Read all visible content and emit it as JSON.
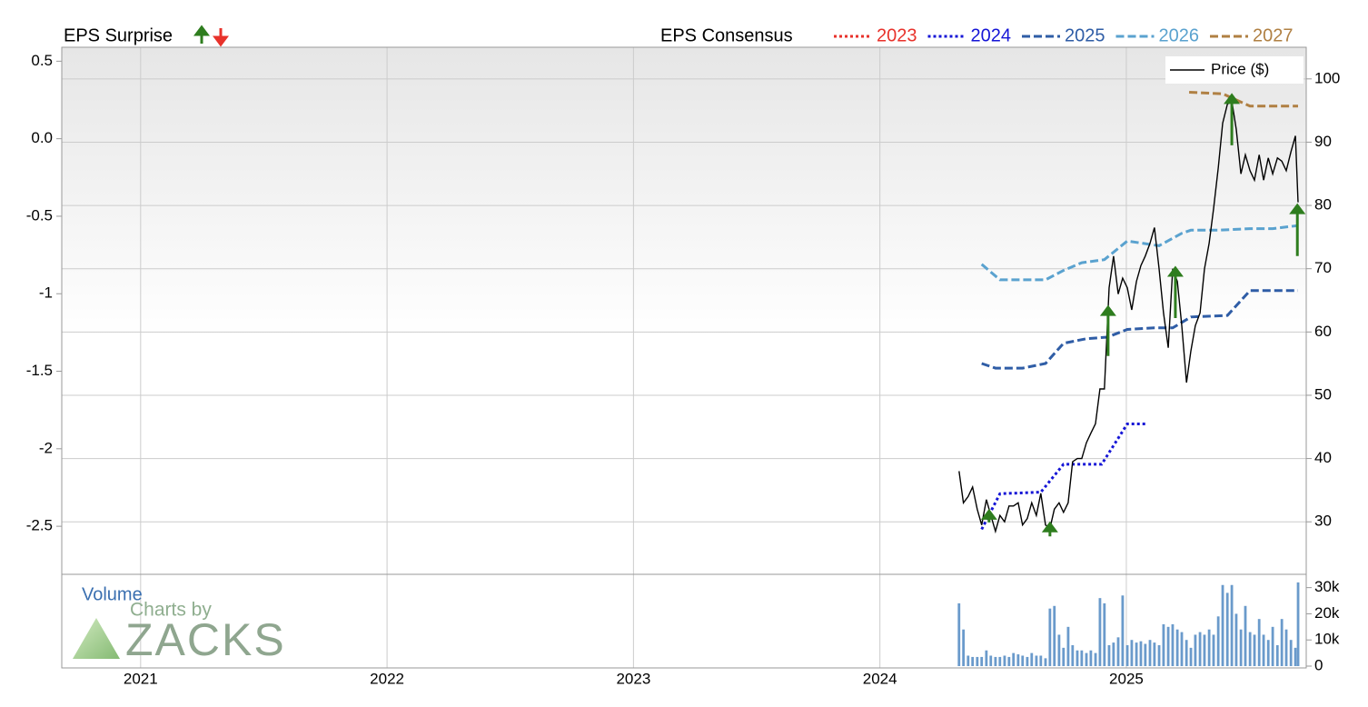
{
  "chart_data": {
    "type": "line",
    "surprise_label": "EPS Surprise",
    "consensus_label": "EPS Consensus",
    "xlim": [
      2020.68,
      2025.73
    ],
    "xticks": [
      2021,
      2022,
      2023,
      2024,
      2025
    ],
    "ylim": [
      -2.81,
      0.59
    ],
    "yticks": [
      0.5,
      {
        "value": 0,
        "label": "0.0"
      },
      -0.5,
      -1,
      -1.5,
      -2,
      -2.5
    ],
    "y2lim": [
      21.7,
      105
    ],
    "y2ticks": [
      30,
      40,
      50,
      60,
      70,
      80,
      90,
      100
    ],
    "grid": true,
    "series": [
      {
        "name": "2023",
        "color": "#e8322b",
        "dash": "dotted",
        "x": [],
        "values": []
      },
      {
        "name": "2024",
        "color": "#1515d6",
        "dash": "dotted",
        "x": [
          2024.413,
          2024.487,
          2024.653,
          2024.745,
          2024.9,
          2025.004,
          2025.085
        ],
        "values": [
          -2.52,
          -2.29,
          -2.28,
          -2.1,
          -2.1,
          -1.84,
          -1.84
        ]
      },
      {
        "name": "2025",
        "color": "#2f5da6",
        "dash": "dashed",
        "x": [
          2024.413,
          2024.469,
          2024.579,
          2024.672,
          2024.745,
          2024.838,
          2024.923,
          2025.004,
          2025.114,
          2025.188,
          2025.262,
          2025.41,
          2025.502,
          2025.697
        ],
        "values": [
          -1.45,
          -1.48,
          -1.48,
          -1.45,
          -1.32,
          -1.29,
          -1.28,
          -1.23,
          -1.22,
          -1.22,
          -1.15,
          -1.14,
          -0.98,
          -0.98
        ]
      },
      {
        "name": "2026",
        "color": "#5aa2cf",
        "dash": "dashed",
        "x": [
          2024.413,
          2024.487,
          2024.672,
          2024.745,
          2024.819,
          2024.911,
          2025.004,
          2025.133,
          2025.225,
          2025.262,
          2025.373,
          2025.502,
          2025.594,
          2025.697
        ],
        "values": [
          -0.81,
          -0.91,
          -0.91,
          -0.85,
          -0.8,
          -0.78,
          -0.66,
          -0.69,
          -0.61,
          -0.59,
          -0.59,
          -0.58,
          -0.58,
          -0.56
        ]
      },
      {
        "name": "2027",
        "color": "#b08043",
        "dash": "dashed",
        "x": [
          2025.255,
          2025.391,
          2025.502,
          2025.697
        ],
        "values": [
          0.3,
          0.29,
          0.21,
          0.21
        ]
      },
      {
        "name": "Price ($)",
        "color": "#000000",
        "axis": "y2",
        "x": [
          2024.321,
          2024.339,
          2024.358,
          2024.376,
          2024.395,
          2024.413,
          2024.432,
          2024.45,
          2024.469,
          2024.487,
          2024.506,
          2024.524,
          2024.542,
          2024.561,
          2024.579,
          2024.598,
          2024.616,
          2024.635,
          2024.653,
          2024.672,
          2024.69,
          2024.708,
          2024.727,
          2024.745,
          2024.764,
          2024.782,
          2024.801,
          2024.819,
          2024.838,
          2024.856,
          2024.875,
          2024.893,
          2024.911,
          2024.93,
          2024.948,
          2024.967,
          2024.985,
          2025.004,
          2025.022,
          2025.041,
          2025.059,
          2025.077,
          2025.096,
          2025.114,
          2025.133,
          2025.151,
          2025.17,
          2025.188,
          2025.207,
          2025.225,
          2025.244,
          2025.262,
          2025.28,
          2025.299,
          2025.317,
          2025.336,
          2025.354,
          2025.373,
          2025.391,
          2025.41,
          2025.428,
          2025.446,
          2025.465,
          2025.483,
          2025.502,
          2025.52,
          2025.539,
          2025.557,
          2025.576,
          2025.594,
          2025.613,
          2025.631,
          2025.649,
          2025.668,
          2025.686,
          2025.697
        ],
        "values": [
          38,
          33,
          34,
          35.5,
          32,
          29.5,
          33.5,
          31,
          28.5,
          31,
          30,
          32.5,
          32.5,
          33,
          29.5,
          30.5,
          33,
          31,
          34.5,
          29.5,
          29,
          32,
          33,
          31.5,
          33,
          39.5,
          40,
          40,
          42.5,
          44,
          45.5,
          51,
          51,
          67,
          72,
          66,
          68.5,
          67,
          63.5,
          68,
          70.5,
          72,
          74,
          76.5,
          70,
          63,
          57.5,
          70,
          68,
          61,
          52,
          57,
          61,
          63,
          70,
          74,
          79.5,
          86,
          93,
          96,
          96.5,
          92,
          85,
          88,
          85.5,
          84,
          88,
          84,
          87.5,
          85,
          87.5,
          87,
          85.5,
          88.5,
          91,
          80.5
        ]
      }
    ],
    "surprises": {
      "color": "#2e7d1e",
      "axis": "y2",
      "x": [
        2024.443,
        2024.69,
        2024.926,
        2025.199,
        2025.428,
        2025.694
      ],
      "from": [
        29.9,
        27.7,
        56.2,
        62.2,
        89.5,
        72.0
      ],
      "to": [
        31.7,
        29.7,
        63.9,
        70.1,
        97.4,
        80.0
      ]
    },
    "volume": {
      "label": "Volume",
      "color": "#6a9acb",
      "ylim": [
        0,
        33000
      ],
      "yticks": [
        0,
        {
          "value": 10000,
          "label": "10k"
        },
        {
          "value": 20000,
          "label": "20k"
        },
        {
          "value": 30000,
          "label": "30k"
        }
      ],
      "values": [
        24000,
        14000,
        4000,
        3500,
        3500,
        3500,
        6000,
        4000,
        3500,
        3500,
        4000,
        3500,
        5000,
        4500,
        4000,
        3500,
        5000,
        4000,
        4000,
        3000,
        22000,
        23000,
        12000,
        7000,
        15000,
        8000,
        6000,
        6000,
        5000,
        6000,
        5000,
        26000,
        24000,
        8000,
        9000,
        11000,
        27000,
        8000,
        10000,
        9000,
        9500,
        8500,
        10000,
        9000,
        8000,
        16000,
        15000,
        16000,
        14000,
        13000,
        10000,
        7000,
        12000,
        13000,
        12000,
        14000,
        12000,
        19000,
        31000,
        28000,
        31000,
        20000,
        14000,
        23000,
        13000,
        12000,
        18000,
        12000,
        10000,
        15000,
        8000,
        18000,
        14000,
        10000,
        7000,
        32000
      ]
    },
    "watermark": [
      "Charts by",
      "ZACKS"
    ]
  }
}
